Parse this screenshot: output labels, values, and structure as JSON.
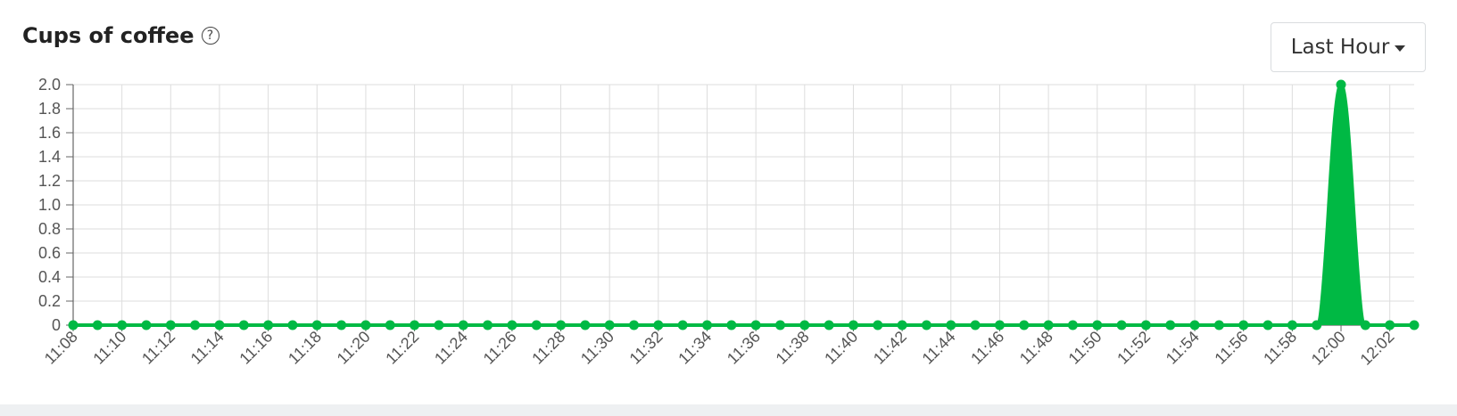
{
  "header": {
    "title": "Cups of coffee",
    "help_glyph": "?",
    "range_label": "Last Hour"
  },
  "colors": {
    "series": "#00b944",
    "grid": "#dddddd",
    "axis": "#666666",
    "background": "#ffffff"
  },
  "chart_data": {
    "type": "area",
    "title": "Cups of coffee",
    "xlabel": "",
    "ylabel": "",
    "ylim": [
      0,
      2.0
    ],
    "yticks": [
      "0",
      "0.2",
      "0.4",
      "0.6",
      "0.8",
      "1.0",
      "1.2",
      "1.4",
      "1.6",
      "1.8",
      "2.0"
    ],
    "x_tick_labels": [
      "11:08",
      "11:10",
      "11:12",
      "11:14",
      "11:16",
      "11:18",
      "11:20",
      "11:22",
      "11:24",
      "11:26",
      "11:28",
      "11:30",
      "11:32",
      "11:34",
      "11:36",
      "11:38",
      "11:40",
      "11:42",
      "11:44",
      "11:46",
      "11:48",
      "11:50",
      "11:52",
      "11:54",
      "11:56",
      "11:58",
      "12:00",
      "12:02"
    ],
    "x": [
      "11:08",
      "11:09",
      "11:10",
      "11:11",
      "11:12",
      "11:13",
      "11:14",
      "11:15",
      "11:16",
      "11:17",
      "11:18",
      "11:19",
      "11:20",
      "11:21",
      "11:22",
      "11:23",
      "11:24",
      "11:25",
      "11:26",
      "11:27",
      "11:28",
      "11:29",
      "11:30",
      "11:31",
      "11:32",
      "11:33",
      "11:34",
      "11:35",
      "11:36",
      "11:37",
      "11:38",
      "11:39",
      "11:40",
      "11:41",
      "11:42",
      "11:43",
      "11:44",
      "11:45",
      "11:46",
      "11:47",
      "11:48",
      "11:49",
      "11:50",
      "11:51",
      "11:52",
      "11:53",
      "11:54",
      "11:55",
      "11:56",
      "11:57",
      "11:58",
      "11:59",
      "12:00",
      "12:01",
      "12:02",
      "12:03"
    ],
    "values": [
      0,
      0,
      0,
      0,
      0,
      0,
      0,
      0,
      0,
      0,
      0,
      0,
      0,
      0,
      0,
      0,
      0,
      0,
      0,
      0,
      0,
      0,
      0,
      0,
      0,
      0,
      0,
      0,
      0,
      0,
      0,
      0,
      0,
      0,
      0,
      0,
      0,
      0,
      0,
      0,
      0,
      0,
      0,
      0,
      0,
      0,
      0,
      0,
      0,
      0,
      0,
      0,
      2,
      0,
      0,
      0
    ],
    "grid": true,
    "legend": "none"
  }
}
